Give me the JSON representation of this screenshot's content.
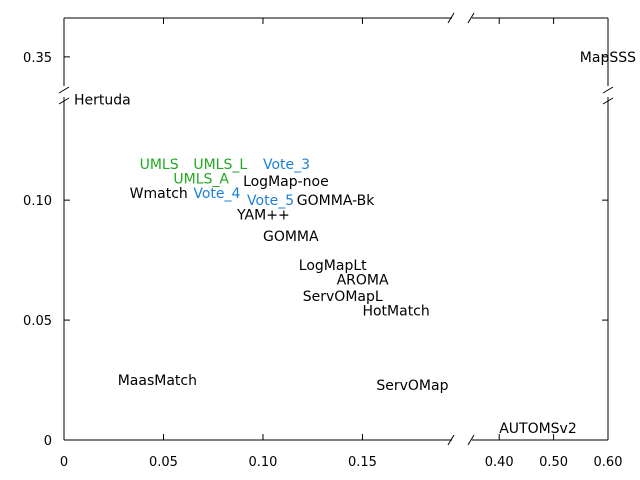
{
  "chart_data": {
    "type": "scatter",
    "title": "",
    "xlabel": "",
    "ylabel": "",
    "broken_x_axis": true,
    "broken_y_axis": true,
    "x_segments": [
      {
        "range": [
          0,
          0.195
        ],
        "ticks": [
          "0",
          "0.05",
          "0.10",
          "0.15"
        ],
        "tick_values": [
          0,
          0.05,
          0.1,
          0.15
        ]
      },
      {
        "range": [
          0.35,
          0.6
        ],
        "ticks": [
          "0.40",
          "0.50",
          "0.60"
        ],
        "tick_values": [
          0.4,
          0.5,
          0.6
        ]
      }
    ],
    "y_segments": [
      {
        "range": [
          0,
          0.143
        ],
        "ticks": [
          "0",
          "0.05",
          "0.10"
        ],
        "tick_values": [
          0,
          0.05,
          0.1
        ]
      },
      {
        "range": [
          0.335,
          0.37
        ],
        "ticks": [
          "0.35"
        ],
        "tick_values": [
          0.35
        ]
      }
    ],
    "colors": {
      "default": "#000000",
      "umls": "#22aa22",
      "vote": "#1e7fd8"
    },
    "points": [
      {
        "label": "MapSSS",
        "x": 0.595,
        "y": 0.35,
        "color": "default"
      },
      {
        "label": "Hertuda",
        "x": 0.005,
        "y": 0.142,
        "color": "default"
      },
      {
        "label": "UMLS_L",
        "x": 0.065,
        "y": 0.115,
        "color": "umls"
      },
      {
        "label": "Vote_3",
        "x": 0.1,
        "y": 0.115,
        "color": "vote"
      },
      {
        "label": "UMLS",
        "x": 0.038,
        "y": 0.115,
        "color": "umls"
      },
      {
        "label": "UMLS_A",
        "x": 0.055,
        "y": 0.109,
        "color": "umls"
      },
      {
        "label": "LogMap-noe",
        "x": 0.09,
        "y": 0.108,
        "color": "default"
      },
      {
        "label": "Wmatch",
        "x": 0.033,
        "y": 0.103,
        "color": "default"
      },
      {
        "label": "Vote_4",
        "x": 0.065,
        "y": 0.103,
        "color": "vote"
      },
      {
        "label": "Vote_5",
        "x": 0.092,
        "y": 0.1,
        "color": "vote"
      },
      {
        "label": "GOMMA-Bk",
        "x": 0.117,
        "y": 0.1,
        "color": "default"
      },
      {
        "label": "YAM++",
        "x": 0.087,
        "y": 0.094,
        "color": "default"
      },
      {
        "label": "GOMMA",
        "x": 0.1,
        "y": 0.085,
        "color": "default"
      },
      {
        "label": "LogMapLt",
        "x": 0.118,
        "y": 0.073,
        "color": "default"
      },
      {
        "label": "AROMA",
        "x": 0.137,
        "y": 0.067,
        "color": "default"
      },
      {
        "label": "ServOMapL",
        "x": 0.12,
        "y": 0.06,
        "color": "default"
      },
      {
        "label": "HotMatch",
        "x": 0.15,
        "y": 0.054,
        "color": "default"
      },
      {
        "label": "MaasMatch",
        "x": 0.027,
        "y": 0.025,
        "color": "default"
      },
      {
        "label": "ServOMap",
        "x": 0.157,
        "y": 0.023,
        "color": "default"
      },
      {
        "label": "AUTOMSv2",
        "x": 0.4,
        "y": 0.005,
        "color": "default"
      }
    ]
  }
}
